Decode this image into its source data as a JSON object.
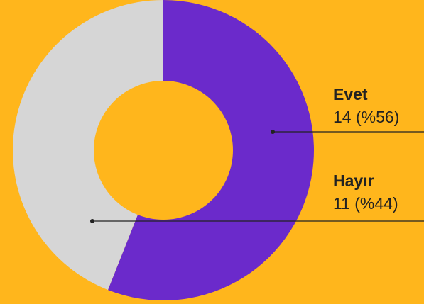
{
  "chart_data": {
    "type": "pie",
    "donut": true,
    "title": "",
    "slices": [
      {
        "label": "Evet",
        "value": 14,
        "value_text": "14 (%56)",
        "percent": 56,
        "color": "#6B2ACB"
      },
      {
        "label": "Hayır",
        "value": 11,
        "value_text": "11 (%44)",
        "percent": 44,
        "color": "#D6D6D6"
      }
    ],
    "legend_placement": "right",
    "background_color": "#FFB61C"
  }
}
